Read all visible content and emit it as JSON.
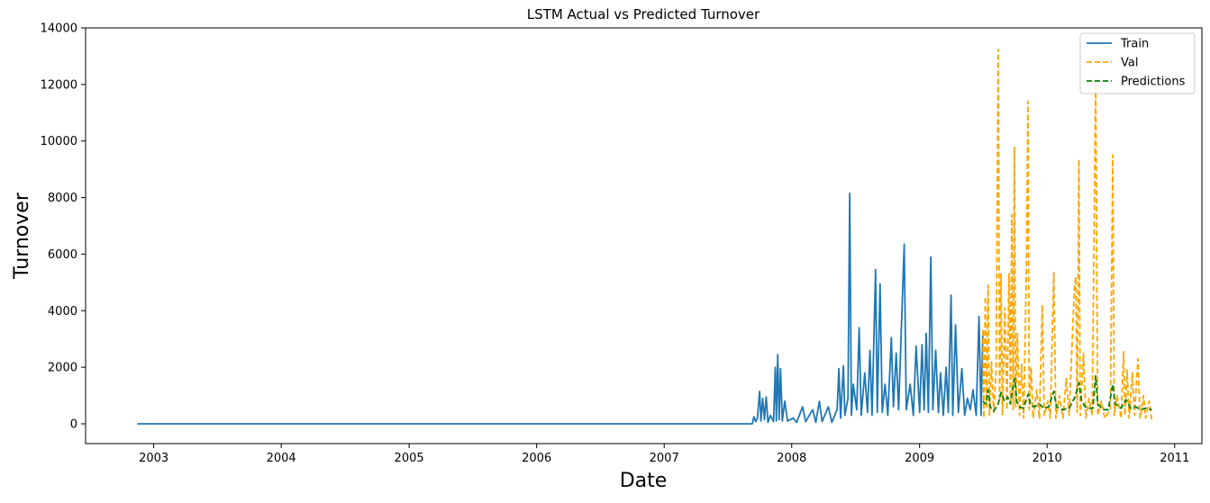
{
  "chart_data": {
    "type": "line",
    "title": "LSTM Actual vs Predicted Turnover",
    "xlabel": "Date",
    "ylabel": "Turnover",
    "x_axis_type": "date",
    "xlim": [
      "2002-06-20",
      "2011-03-20"
    ],
    "ylim": [
      -700,
      14000
    ],
    "x_ticks": [
      "2003",
      "2004",
      "2005",
      "2006",
      "2007",
      "2008",
      "2009",
      "2010",
      "2011"
    ],
    "x_tick_dates": [
      "2003-01-01",
      "2004-01-01",
      "2005-01-01",
      "2006-01-01",
      "2007-01-01",
      "2008-01-01",
      "2009-01-01",
      "2010-01-01",
      "2011-01-01"
    ],
    "y_ticks": [
      0,
      2000,
      4000,
      6000,
      8000,
      10000,
      12000,
      14000
    ],
    "grid": false,
    "legend_position": "top-right",
    "series": [
      {
        "name": "Train",
        "color": "#1f77b4",
        "style": "solid",
        "points": [
          [
            "2002-11-15",
            0
          ],
          [
            "2003-06-01",
            0
          ],
          [
            "2004-06-01",
            0
          ],
          [
            "2005-06-01",
            0
          ],
          [
            "2006-06-01",
            0
          ],
          [
            "2007-06-01",
            0
          ],
          [
            "2007-09-10",
            0
          ],
          [
            "2007-09-15",
            250
          ],
          [
            "2007-09-20",
            80
          ],
          [
            "2007-09-25",
            200
          ],
          [
            "2007-10-01",
            1150
          ],
          [
            "2007-10-05",
            100
          ],
          [
            "2007-10-10",
            900
          ],
          [
            "2007-10-15",
            150
          ],
          [
            "2007-10-20",
            950
          ],
          [
            "2007-10-25",
            50
          ],
          [
            "2007-11-01",
            300
          ],
          [
            "2007-11-10",
            80
          ],
          [
            "2007-11-15",
            2000
          ],
          [
            "2007-11-18",
            100
          ],
          [
            "2007-11-22",
            2450
          ],
          [
            "2007-11-26",
            150
          ],
          [
            "2007-11-30",
            1950
          ],
          [
            "2007-12-05",
            100
          ],
          [
            "2007-12-12",
            800
          ],
          [
            "2007-12-20",
            100
          ],
          [
            "2008-01-05",
            200
          ],
          [
            "2008-01-15",
            50
          ],
          [
            "2008-02-01",
            600
          ],
          [
            "2008-02-10",
            80
          ],
          [
            "2008-03-01",
            500
          ],
          [
            "2008-03-10",
            50
          ],
          [
            "2008-03-20",
            800
          ],
          [
            "2008-03-28",
            80
          ],
          [
            "2008-04-15",
            600
          ],
          [
            "2008-04-25",
            50
          ],
          [
            "2008-05-10",
            500
          ],
          [
            "2008-05-15",
            1950
          ],
          [
            "2008-05-20",
            200
          ],
          [
            "2008-05-28",
            2050
          ],
          [
            "2008-06-01",
            300
          ],
          [
            "2008-06-10",
            900
          ],
          [
            "2008-06-15",
            8150
          ],
          [
            "2008-06-20",
            300
          ],
          [
            "2008-06-25",
            1400
          ],
          [
            "2008-07-05",
            500
          ],
          [
            "2008-07-12",
            3400
          ],
          [
            "2008-07-18",
            300
          ],
          [
            "2008-07-28",
            1800
          ],
          [
            "2008-08-05",
            400
          ],
          [
            "2008-08-12",
            2600
          ],
          [
            "2008-08-18",
            300
          ],
          [
            "2008-08-28",
            5450
          ],
          [
            "2008-09-02",
            400
          ],
          [
            "2008-09-10",
            4950
          ],
          [
            "2008-09-16",
            400
          ],
          [
            "2008-09-24",
            1400
          ],
          [
            "2008-10-02",
            300
          ],
          [
            "2008-10-12",
            3050
          ],
          [
            "2008-10-18",
            600
          ],
          [
            "2008-10-26",
            2500
          ],
          [
            "2008-11-02",
            500
          ],
          [
            "2008-11-18",
            6350
          ],
          [
            "2008-11-24",
            500
          ],
          [
            "2008-12-05",
            1400
          ],
          [
            "2008-12-14",
            300
          ],
          [
            "2008-12-22",
            2750
          ],
          [
            "2009-01-01",
            400
          ],
          [
            "2009-01-08",
            2800
          ],
          [
            "2009-01-14",
            500
          ],
          [
            "2009-01-20",
            3200
          ],
          [
            "2009-01-26",
            400
          ],
          [
            "2009-02-02",
            5900
          ],
          [
            "2009-02-08",
            500
          ],
          [
            "2009-02-16",
            2600
          ],
          [
            "2009-02-24",
            400
          ],
          [
            "2009-03-02",
            1800
          ],
          [
            "2009-03-10",
            300
          ],
          [
            "2009-03-18",
            2000
          ],
          [
            "2009-03-24",
            400
          ],
          [
            "2009-04-01",
            4550
          ],
          [
            "2009-04-06",
            300
          ],
          [
            "2009-04-14",
            3500
          ],
          [
            "2009-04-22",
            400
          ],
          [
            "2009-05-02",
            1950
          ],
          [
            "2009-05-10",
            300
          ],
          [
            "2009-05-18",
            900
          ],
          [
            "2009-05-26",
            500
          ],
          [
            "2009-06-03",
            1200
          ],
          [
            "2009-06-12",
            300
          ],
          [
            "2009-06-20",
            3800
          ],
          [
            "2009-06-26",
            300
          ],
          [
            "2009-07-01",
            3300
          ]
        ]
      },
      {
        "name": "Val",
        "color": "#ffa500",
        "style": "dashed",
        "points": [
          [
            "2009-07-01",
            3300
          ],
          [
            "2009-07-04",
            200
          ],
          [
            "2009-07-08",
            4500
          ],
          [
            "2009-07-12",
            600
          ],
          [
            "2009-07-16",
            4900
          ],
          [
            "2009-07-20",
            300
          ],
          [
            "2009-07-26",
            2200
          ],
          [
            "2009-08-01",
            400
          ],
          [
            "2009-08-08",
            1900
          ],
          [
            "2009-08-14",
            13250
          ],
          [
            "2009-08-18",
            800
          ],
          [
            "2009-08-22",
            5300
          ],
          [
            "2009-08-26",
            300
          ],
          [
            "2009-09-02",
            4100
          ],
          [
            "2009-09-08",
            500
          ],
          [
            "2009-09-14",
            5300
          ],
          [
            "2009-09-18",
            800
          ],
          [
            "2009-09-22",
            7400
          ],
          [
            "2009-09-26",
            500
          ],
          [
            "2009-09-29",
            9800
          ],
          [
            "2009-10-03",
            600
          ],
          [
            "2009-10-08",
            3200
          ],
          [
            "2009-10-14",
            300
          ],
          [
            "2009-10-20",
            2100
          ],
          [
            "2009-10-26",
            200
          ],
          [
            "2009-11-03",
            5600
          ],
          [
            "2009-11-07",
            11400
          ],
          [
            "2009-11-11",
            500
          ],
          [
            "2009-11-16",
            2000
          ],
          [
            "2009-11-22",
            200
          ],
          [
            "2009-12-02",
            1200
          ],
          [
            "2009-12-10",
            200
          ],
          [
            "2009-12-18",
            4200
          ],
          [
            "2009-12-24",
            300
          ],
          [
            "2010-01-03",
            800
          ],
          [
            "2010-01-10",
            200
          ],
          [
            "2010-01-20",
            5350
          ],
          [
            "2010-01-26",
            200
          ],
          [
            "2010-02-05",
            1000
          ],
          [
            "2010-02-15",
            200
          ],
          [
            "2010-02-25",
            1600
          ],
          [
            "2010-03-05",
            300
          ],
          [
            "2010-03-20",
            4800
          ],
          [
            "2010-03-24",
            5200
          ],
          [
            "2010-03-28",
            400
          ],
          [
            "2010-04-02",
            9350
          ],
          [
            "2010-04-06",
            300
          ],
          [
            "2010-04-15",
            2500
          ],
          [
            "2010-04-22",
            200
          ],
          [
            "2010-05-01",
            900
          ],
          [
            "2010-05-10",
            300
          ],
          [
            "2010-05-20",
            12200
          ],
          [
            "2010-05-26",
            300
          ],
          [
            "2010-06-05",
            800
          ],
          [
            "2010-06-15",
            200
          ],
          [
            "2010-07-01",
            500
          ],
          [
            "2010-07-08",
            9500
          ],
          [
            "2010-07-12",
            300
          ],
          [
            "2010-07-20",
            1000
          ],
          [
            "2010-08-01",
            200
          ],
          [
            "2010-08-08",
            2550
          ],
          [
            "2010-08-12",
            300
          ],
          [
            "2010-08-18",
            1900
          ],
          [
            "2010-08-24",
            200
          ],
          [
            "2010-09-02",
            1800
          ],
          [
            "2010-09-08",
            300
          ],
          [
            "2010-09-18",
            2300
          ],
          [
            "2010-09-24",
            200
          ],
          [
            "2010-10-04",
            1000
          ],
          [
            "2010-10-10",
            200
          ],
          [
            "2010-10-20",
            800
          ],
          [
            "2010-10-28",
            100
          ]
        ]
      },
      {
        "name": "Predictions",
        "color": "#008000",
        "style": "dashed",
        "points": [
          [
            "2009-07-01",
            800
          ],
          [
            "2009-07-10",
            700
          ],
          [
            "2009-07-16",
            1200
          ],
          [
            "2009-07-22",
            600
          ],
          [
            "2009-08-01",
            450
          ],
          [
            "2009-08-14",
            700
          ],
          [
            "2009-08-22",
            1100
          ],
          [
            "2009-09-01",
            800
          ],
          [
            "2009-09-10",
            950
          ],
          [
            "2009-09-18",
            700
          ],
          [
            "2009-09-24",
            1250
          ],
          [
            "2009-10-01",
            1600
          ],
          [
            "2009-10-06",
            800
          ],
          [
            "2009-10-14",
            600
          ],
          [
            "2009-10-25",
            550
          ],
          [
            "2009-11-08",
            1050
          ],
          [
            "2009-11-15",
            650
          ],
          [
            "2009-11-25",
            600
          ],
          [
            "2009-12-10",
            700
          ],
          [
            "2009-12-22",
            550
          ],
          [
            "2010-01-05",
            600
          ],
          [
            "2010-01-20",
            1150
          ],
          [
            "2010-01-28",
            600
          ],
          [
            "2010-02-15",
            500
          ],
          [
            "2010-03-05",
            550
          ],
          [
            "2010-03-22",
            950
          ],
          [
            "2010-04-02",
            1450
          ],
          [
            "2010-04-10",
            800
          ],
          [
            "2010-04-20",
            600
          ],
          [
            "2010-05-01",
            550
          ],
          [
            "2010-05-12",
            550
          ],
          [
            "2010-05-20",
            1700
          ],
          [
            "2010-05-26",
            700
          ],
          [
            "2010-06-10",
            500
          ],
          [
            "2010-06-25",
            500
          ],
          [
            "2010-07-08",
            1400
          ],
          [
            "2010-07-15",
            700
          ],
          [
            "2010-08-01",
            550
          ],
          [
            "2010-08-15",
            850
          ],
          [
            "2010-08-28",
            550
          ],
          [
            "2010-09-12",
            600
          ],
          [
            "2010-09-26",
            500
          ],
          [
            "2010-10-10",
            550
          ],
          [
            "2010-10-28",
            500
          ]
        ]
      }
    ]
  }
}
